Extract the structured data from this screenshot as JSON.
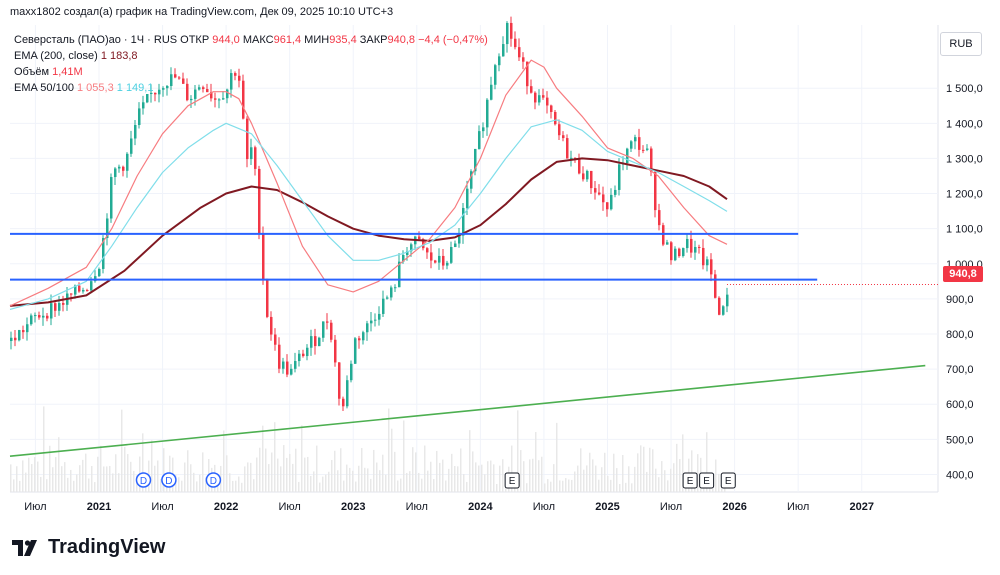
{
  "header": {
    "author_line": "maxx1802 создал(а) график на TradingView.com, Дек 09, 2025 10:10 UTC+3"
  },
  "legend": {
    "symbol": "Северсталь (ПАО)ао · 1Ч · RUS ОТКР",
    "open_value": "944,0",
    "max_label": "МАКС",
    "max_value": "961,4",
    "min_label": "МИН",
    "min_value": "935,4",
    "close_label": "ЗАКР",
    "close_value": "940,8",
    "change": "−4,4 (−0,47%)",
    "ema200_label": "EMA (200, close)",
    "ema200_value": "1 183,8",
    "volume_label": "Объём",
    "volume_value": "1,41M",
    "ema50100_label": "EMA 50/100",
    "ema50_value": "1 055,3",
    "ema100_value": "1 149,1"
  },
  "currency": "RUB",
  "last_price_tag": "940,8",
  "brand": {
    "name": "TradingView"
  },
  "colors": {
    "up": "#22ab94",
    "down": "#f23645",
    "ema200": "#801922",
    "ema50": "#f77c80",
    "ema100": "#80deea",
    "hline": "#2962ff",
    "trend": "#4caf50",
    "grid": "#f0f3fa",
    "text": "#131722"
  },
  "chart_data": {
    "type": "line",
    "title": "Северсталь (ПАО)ао · 1Ч · RUS ОТКР",
    "ylim": [
      350,
      1680
    ],
    "xlim": [
      2020.3,
      2027.6
    ],
    "y_ticks": [
      "400,0",
      "500,0",
      "600,0",
      "700,0",
      "800,0",
      "900,0",
      "1 000,0",
      "1 100,0",
      "1 200,0",
      "1 300,0",
      "1 400,0",
      "1 500,0"
    ],
    "y_tick_values": [
      400,
      500,
      600,
      700,
      800,
      900,
      1000,
      1100,
      1200,
      1300,
      1400,
      1500
    ],
    "x_ticks": [
      {
        "label": "Июл",
        "x": 2020.5
      },
      {
        "label": "2021",
        "x": 2021.0
      },
      {
        "label": "Июл",
        "x": 2021.5
      },
      {
        "label": "2022",
        "x": 2022.0
      },
      {
        "label": "Июл",
        "x": 2022.5
      },
      {
        "label": "2023",
        "x": 2023.0
      },
      {
        "label": "Июл",
        "x": 2023.5
      },
      {
        "label": "2024",
        "x": 2024.0
      },
      {
        "label": "Июл",
        "x": 2024.5
      },
      {
        "label": "2025",
        "x": 2025.0
      },
      {
        "label": "Июл",
        "x": 2025.5
      },
      {
        "label": "2026",
        "x": 2026.0
      },
      {
        "label": "Июл",
        "x": 2026.5
      },
      {
        "label": "2027",
        "x": 2027.0
      }
    ],
    "series": [
      {
        "name": "Цена",
        "color": "#22ab94",
        "x": [
          2020.3,
          2020.5,
          2020.7,
          2020.9,
          2021.0,
          2021.1,
          2021.2,
          2021.3,
          2021.4,
          2021.5,
          2021.6,
          2021.7,
          2021.8,
          2021.9,
          2022.0,
          2022.05,
          2022.1,
          2022.15,
          2022.2,
          2022.3,
          2022.4,
          2022.5,
          2022.6,
          2022.7,
          2022.8,
          2022.9,
          2023.0,
          2023.1,
          2023.2,
          2023.3,
          2023.4,
          2023.5,
          2023.6,
          2023.7,
          2023.8,
          2023.9,
          2024.0,
          2024.05,
          2024.1,
          2024.2,
          2024.3,
          2024.4,
          2024.5,
          2024.6,
          2024.7,
          2024.8,
          2024.9,
          2025.0,
          2025.1,
          2025.2,
          2025.3,
          2025.4,
          2025.5,
          2025.6,
          2025.7,
          2025.8,
          2025.85,
          2025.9,
          2025.94
        ],
        "values": [
          780,
          850,
          890,
          940,
          1010,
          1260,
          1290,
          1420,
          1480,
          1520,
          1530,
          1470,
          1520,
          1470,
          1500,
          1560,
          1520,
          1280,
          1340,
          880,
          720,
          690,
          750,
          790,
          850,
          570,
          780,
          820,
          880,
          920,
          1050,
          1060,
          1010,
          1000,
          1050,
          1220,
          1390,
          1470,
          1570,
          1680,
          1580,
          1490,
          1450,
          1370,
          1300,
          1260,
          1210,
          1150,
          1290,
          1350,
          1320,
          1100,
          1010,
          1060,
          1030,
          980,
          880,
          860,
          940.8
        ]
      },
      {
        "name": "EMA (200, close)",
        "color": "#801922",
        "x": [
          2020.3,
          2020.6,
          2020.9,
          2021.2,
          2021.5,
          2021.8,
          2022.0,
          2022.2,
          2022.4,
          2022.6,
          2022.8,
          2023.0,
          2023.2,
          2023.4,
          2023.6,
          2023.8,
          2024.0,
          2024.2,
          2024.4,
          2024.6,
          2024.8,
          2025.0,
          2025.2,
          2025.4,
          2025.6,
          2025.8,
          2025.94
        ],
        "values": [
          880,
          890,
          910,
          980,
          1080,
          1160,
          1200,
          1220,
          1210,
          1175,
          1135,
          1100,
          1080,
          1070,
          1065,
          1075,
          1110,
          1170,
          1240,
          1290,
          1300,
          1295,
          1280,
          1265,
          1250,
          1220,
          1183.8
        ]
      },
      {
        "name": "EMA 50",
        "color": "#f77c80",
        "x": [
          2020.3,
          2020.6,
          2020.9,
          2021.1,
          2021.3,
          2021.5,
          2021.7,
          2021.9,
          2022.0,
          2022.1,
          2022.2,
          2022.4,
          2022.6,
          2022.8,
          2023.0,
          2023.2,
          2023.4,
          2023.6,
          2023.8,
          2024.0,
          2024.2,
          2024.4,
          2024.5,
          2024.6,
          2024.8,
          2025.0,
          2025.2,
          2025.4,
          2025.6,
          2025.8,
          2025.94
        ],
        "values": [
          880,
          930,
          990,
          1100,
          1250,
          1370,
          1450,
          1490,
          1490,
          1470,
          1400,
          1230,
          1050,
          940,
          920,
          950,
          1010,
          1070,
          1160,
          1300,
          1480,
          1580,
          1560,
          1500,
          1420,
          1330,
          1300,
          1250,
          1160,
          1080,
          1055.3
        ]
      },
      {
        "name": "EMA 100",
        "color": "#80deea",
        "x": [
          2020.3,
          2020.6,
          2020.9,
          2021.1,
          2021.3,
          2021.5,
          2021.7,
          2021.9,
          2022.0,
          2022.2,
          2022.4,
          2022.6,
          2022.8,
          2023.0,
          2023.2,
          2023.4,
          2023.6,
          2023.8,
          2024.0,
          2024.2,
          2024.4,
          2024.6,
          2024.8,
          2025.0,
          2025.2,
          2025.4,
          2025.6,
          2025.8,
          2025.94
        ],
        "values": [
          870,
          900,
          950,
          1050,
          1160,
          1260,
          1330,
          1380,
          1400,
          1370,
          1280,
          1180,
          1080,
          1010,
          1010,
          1030,
          1060,
          1110,
          1200,
          1300,
          1390,
          1410,
          1380,
          1320,
          1290,
          1260,
          1220,
          1180,
          1149.1
        ]
      },
      {
        "name": "Горизонталь 1",
        "color": "#2962ff",
        "x": [
          2020.3,
          2026.5
        ],
        "values": [
          1085,
          1085
        ]
      },
      {
        "name": "Горизонталь 2",
        "color": "#2962ff",
        "x": [
          2020.3,
          2026.65
        ],
        "values": [
          955,
          955
        ]
      },
      {
        "name": "Тренд",
        "color": "#4caf50",
        "x": [
          2020.3,
          2027.5
        ],
        "values": [
          452,
          710
        ]
      }
    ],
    "events": [
      {
        "type": "D",
        "x": 2021.35
      },
      {
        "type": "D",
        "x": 2021.55
      },
      {
        "type": "D",
        "x": 2021.9
      },
      {
        "type": "E",
        "x": 2024.25
      },
      {
        "type": "E",
        "x": 2025.65
      },
      {
        "type": "E",
        "x": 2025.78
      },
      {
        "type": "E",
        "x": 2025.95
      }
    ]
  }
}
